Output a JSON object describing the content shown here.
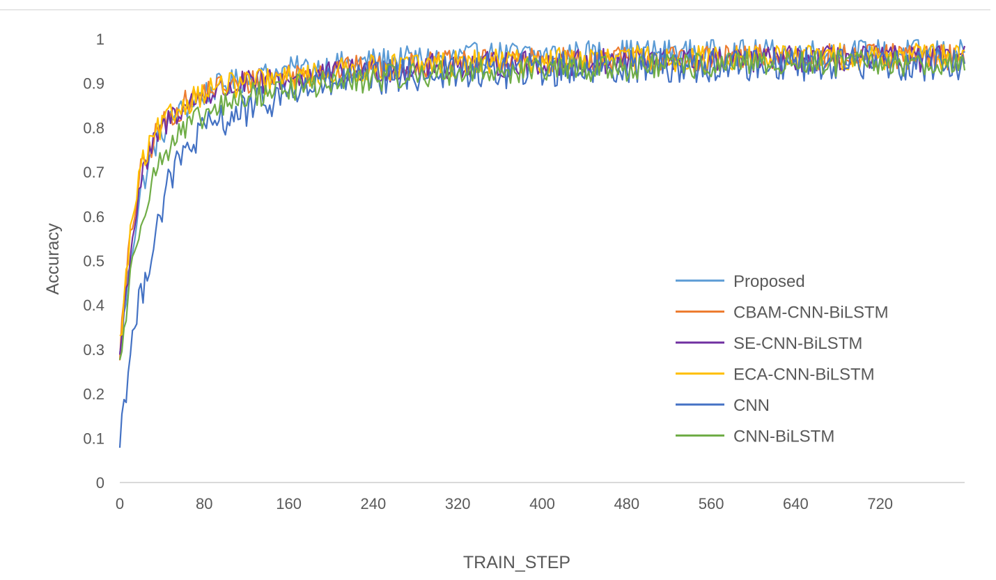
{
  "chart_data": {
    "type": "line",
    "xlabel": "TRAIN_STEP",
    "ylabel": "Accuracy",
    "x_ticks": [
      "0",
      "80",
      "160",
      "240",
      "320",
      "400",
      "480",
      "560",
      "640",
      "720"
    ],
    "x_tick_values": [
      0,
      80,
      160,
      240,
      320,
      400,
      480,
      560,
      640,
      720
    ],
    "y_ticks": [
      "0",
      "0.1",
      "0.2",
      "0.3",
      "0.4",
      "0.5",
      "0.6",
      "0.7",
      "0.8",
      "0.9",
      "1"
    ],
    "y_tick_values": [
      0,
      0.1,
      0.2,
      0.3,
      0.4,
      0.5,
      0.6,
      0.7,
      0.8,
      0.9,
      1
    ],
    "xlim": [
      0,
      800
    ],
    "ylim": [
      0,
      1
    ],
    "legend_position": "center-right",
    "series": [
      {
        "name": "Proposed",
        "color": "#5b9bd5",
        "points": [
          [
            0,
            0.28
          ],
          [
            10,
            0.5
          ],
          [
            20,
            0.66
          ],
          [
            35,
            0.77
          ],
          [
            50,
            0.82
          ],
          [
            70,
            0.86
          ],
          [
            90,
            0.89
          ],
          [
            120,
            0.91
          ],
          [
            160,
            0.93
          ],
          [
            200,
            0.94
          ],
          [
            240,
            0.95
          ],
          [
            280,
            0.955
          ],
          [
            320,
            0.96
          ],
          [
            360,
            0.965
          ],
          [
            400,
            0.965
          ],
          [
            480,
            0.97
          ],
          [
            560,
            0.97
          ],
          [
            640,
            0.97
          ],
          [
            720,
            0.97
          ],
          [
            800,
            0.97
          ]
        ],
        "noise": 0.03
      },
      {
        "name": "CBAM-CNN-BiLSTM",
        "color": "#ed7d31",
        "points": [
          [
            0,
            0.3
          ],
          [
            10,
            0.55
          ],
          [
            20,
            0.7
          ],
          [
            35,
            0.79
          ],
          [
            50,
            0.83
          ],
          [
            70,
            0.87
          ],
          [
            90,
            0.89
          ],
          [
            120,
            0.9
          ],
          [
            160,
            0.92
          ],
          [
            200,
            0.93
          ],
          [
            240,
            0.935
          ],
          [
            280,
            0.94
          ],
          [
            320,
            0.945
          ],
          [
            400,
            0.95
          ],
          [
            480,
            0.955
          ],
          [
            560,
            0.955
          ],
          [
            640,
            0.96
          ],
          [
            720,
            0.96
          ],
          [
            800,
            0.96
          ]
        ],
        "noise": 0.03
      },
      {
        "name": "SE-CNN-BiLSTM",
        "color": "#7030a0",
        "points": [
          [
            0,
            0.29
          ],
          [
            10,
            0.52
          ],
          [
            20,
            0.68
          ],
          [
            35,
            0.78
          ],
          [
            50,
            0.83
          ],
          [
            70,
            0.86
          ],
          [
            90,
            0.88
          ],
          [
            120,
            0.9
          ],
          [
            160,
            0.91
          ],
          [
            200,
            0.92
          ],
          [
            240,
            0.93
          ],
          [
            280,
            0.935
          ],
          [
            320,
            0.94
          ],
          [
            400,
            0.945
          ],
          [
            480,
            0.95
          ],
          [
            560,
            0.95
          ],
          [
            640,
            0.955
          ],
          [
            720,
            0.955
          ],
          [
            800,
            0.955
          ]
        ],
        "noise": 0.03
      },
      {
        "name": "ECA-CNN-BiLSTM",
        "color": "#ffc000",
        "points": [
          [
            0,
            0.31
          ],
          [
            10,
            0.56
          ],
          [
            20,
            0.71
          ],
          [
            35,
            0.79
          ],
          [
            50,
            0.83
          ],
          [
            70,
            0.87
          ],
          [
            90,
            0.89
          ],
          [
            120,
            0.9
          ],
          [
            160,
            0.91
          ],
          [
            200,
            0.925
          ],
          [
            240,
            0.935
          ],
          [
            280,
            0.94
          ],
          [
            320,
            0.945
          ],
          [
            400,
            0.95
          ],
          [
            480,
            0.955
          ],
          [
            560,
            0.955
          ],
          [
            640,
            0.96
          ],
          [
            720,
            0.96
          ],
          [
            800,
            0.96
          ]
        ],
        "noise": 0.03
      },
      {
        "name": "CNN",
        "color": "#4472c4",
        "points": [
          [
            0,
            0.1
          ],
          [
            10,
            0.3
          ],
          [
            20,
            0.42
          ],
          [
            35,
            0.58
          ],
          [
            50,
            0.7
          ],
          [
            70,
            0.77
          ],
          [
            90,
            0.81
          ],
          [
            120,
            0.84
          ],
          [
            160,
            0.88
          ],
          [
            200,
            0.9
          ],
          [
            240,
            0.91
          ],
          [
            280,
            0.92
          ],
          [
            320,
            0.925
          ],
          [
            400,
            0.93
          ],
          [
            480,
            0.94
          ],
          [
            560,
            0.94
          ],
          [
            640,
            0.945
          ],
          [
            720,
            0.945
          ],
          [
            800,
            0.945
          ]
        ],
        "noise": 0.04
      },
      {
        "name": "CNN-BiLSTM",
        "color": "#70ad47",
        "points": [
          [
            0,
            0.27
          ],
          [
            10,
            0.46
          ],
          [
            20,
            0.6
          ],
          [
            35,
            0.71
          ],
          [
            50,
            0.77
          ],
          [
            70,
            0.81
          ],
          [
            90,
            0.84
          ],
          [
            120,
            0.87
          ],
          [
            160,
            0.89
          ],
          [
            200,
            0.9
          ],
          [
            240,
            0.91
          ],
          [
            280,
            0.92
          ],
          [
            320,
            0.925
          ],
          [
            400,
            0.93
          ],
          [
            480,
            0.935
          ],
          [
            560,
            0.94
          ],
          [
            640,
            0.945
          ],
          [
            720,
            0.945
          ],
          [
            800,
            0.945
          ]
        ],
        "noise": 0.03
      }
    ]
  }
}
